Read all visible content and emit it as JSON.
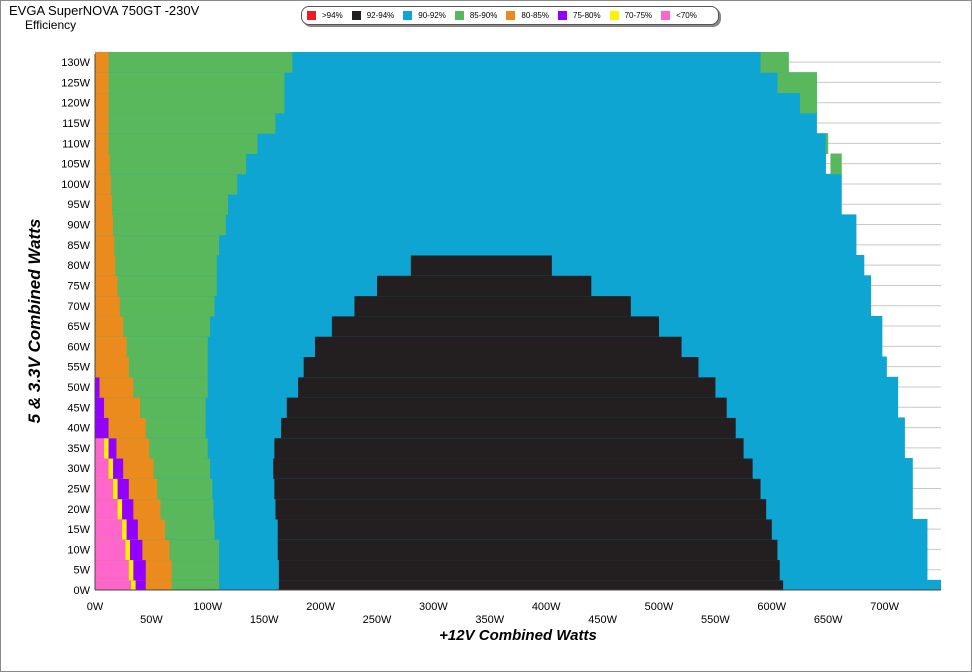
{
  "chart_data": {
    "type": "heatmap",
    "title": "EVGA SuperNOVA 750GT -230V",
    "subtitle": "Efficiency",
    "xlabel": "+12V Combined Watts",
    "ylabel": "5 & 3.3V Combined Watts",
    "x_ticks": [
      "0W",
      "50W",
      "100W",
      "150W",
      "200W",
      "250W",
      "300W",
      "350W",
      "400W",
      "450W",
      "500W",
      "550W",
      "600W",
      "650W",
      "700W"
    ],
    "y_ticks": [
      "0W",
      "5W",
      "10W",
      "15W",
      "20W",
      "25W",
      "30W",
      "35W",
      "40W",
      "45W",
      "50W",
      "55W",
      "60W",
      "65W",
      "70W",
      "75W",
      "80W",
      "85W",
      "90W",
      "95W",
      "100W",
      "105W",
      "110W",
      "115W",
      "120W",
      "125W",
      "130W"
    ],
    "xlim": [
      0,
      750
    ],
    "ylim": [
      0,
      132
    ],
    "legend": [
      {
        "label": ">94%",
        "color": "#ee1c25"
      },
      {
        "label": "92-94%",
        "color": "#231f20"
      },
      {
        "label": "90-92%",
        "color": "#0ea5d2"
      },
      {
        "label": "85-90%",
        "color": "#58b85b"
      },
      {
        "label": "80-85%",
        "color": "#eb8b1e"
      },
      {
        "label": "75-80%",
        "color": "#9400ff"
      },
      {
        "label": "70-75%",
        "color": "#fff200"
      },
      {
        "label": "<70%",
        "color": "#ff66cc"
      }
    ],
    "legend_position": "top",
    "grid": true,
    "region_boundaries": {
      "y_levels": [
        0,
        5,
        10,
        15,
        20,
        25,
        30,
        35,
        40,
        45,
        50,
        55,
        60,
        65,
        70,
        75,
        80,
        85,
        90,
        95,
        100,
        105,
        110,
        115,
        120,
        125,
        130
      ],
      "pink_max_w": [
        32,
        30,
        27,
        24,
        20,
        16,
        12,
        8,
        null,
        null,
        null,
        null,
        null,
        null,
        null,
        null,
        null,
        null,
        null,
        null,
        null,
        null,
        null,
        null,
        null,
        null,
        null
      ],
      "yellow_max_w": [
        36,
        34,
        31,
        28,
        24,
        20,
        16,
        12,
        null,
        null,
        null,
        null,
        null,
        null,
        null,
        null,
        null,
        null,
        null,
        null,
        null,
        null,
        null,
        null,
        null,
        null,
        null
      ],
      "purple_max_w": [
        45,
        45,
        42,
        38,
        34,
        30,
        25,
        19,
        12,
        8,
        4,
        null,
        null,
        null,
        null,
        null,
        null,
        null,
        null,
        null,
        null,
        null,
        null,
        null,
        null,
        null,
        null
      ],
      "orange_max_w": [
        68,
        68,
        66,
        62,
        58,
        55,
        52,
        48,
        45,
        40,
        34,
        30,
        28,
        25,
        22,
        20,
        18,
        17,
        16,
        15,
        14,
        13,
        12,
        12,
        12,
        12,
        12
      ],
      "green_max_w": [
        110,
        110,
        110,
        106,
        105,
        104,
        102,
        100,
        98,
        98,
        100,
        100,
        100,
        102,
        106,
        108,
        108,
        110,
        116,
        118,
        126,
        134,
        144,
        160,
        168,
        168,
        175
      ],
      "black_range_w": [
        [
          163,
          610
        ],
        [
          163,
          607
        ],
        [
          162,
          605
        ],
        [
          162,
          600
        ],
        [
          160,
          595
        ],
        [
          159,
          590
        ],
        [
          158,
          583
        ],
        [
          159,
          575
        ],
        [
          165,
          568
        ],
        [
          170,
          560
        ],
        [
          180,
          550
        ],
        [
          185,
          535
        ],
        [
          195,
          520
        ],
        [
          210,
          500
        ],
        [
          230,
          475
        ],
        [
          250,
          440
        ],
        [
          280,
          405
        ],
        null,
        null,
        null,
        null,
        null,
        null,
        null,
        null,
        null,
        null
      ],
      "blue_max_w": [
        750,
        738,
        738,
        738,
        725,
        725,
        725,
        718,
        718,
        712,
        712,
        702,
        698,
        698,
        688,
        688,
        682,
        675,
        675,
        662,
        662,
        648,
        648,
        640,
        640,
        640,
        615
      ],
      "green2_start_w": [
        null,
        null,
        null,
        null,
        null,
        null,
        null,
        null,
        null,
        null,
        null,
        null,
        null,
        null,
        null,
        null,
        null,
        null,
        null,
        null,
        null,
        652,
        650,
        640,
        625,
        605,
        590
      ],
      "green2_end_w": [
        null,
        null,
        null,
        null,
        null,
        null,
        null,
        null,
        null,
        null,
        null,
        null,
        null,
        null,
        null,
        null,
        null,
        null,
        null,
        null,
        null,
        662,
        648,
        640,
        640,
        640,
        615
      ]
    }
  }
}
